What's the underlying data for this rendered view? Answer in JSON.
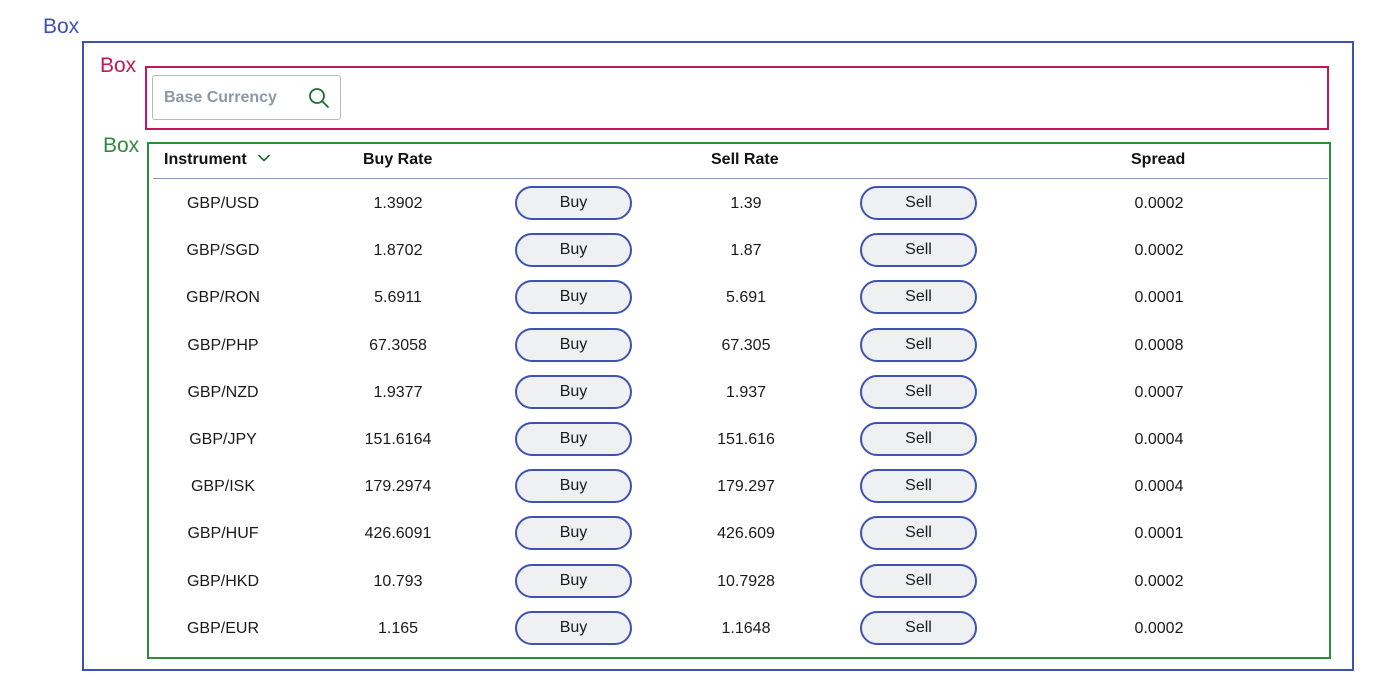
{
  "labels": {
    "outer": "Box",
    "search": "Box",
    "table": "Box"
  },
  "colors": {
    "outer_box": "#3f51b5",
    "search_box": "#c2185b",
    "table_box": "#2e8b3a",
    "search_icon": "#1b6b34",
    "button_border": "#3f51b5"
  },
  "search": {
    "placeholder": "Base Currency",
    "value": "",
    "icon": "search-icon"
  },
  "table": {
    "headers": {
      "instrument": "Instrument",
      "buy_rate": "Buy Rate",
      "sell_rate": "Sell Rate",
      "spread": "Spread",
      "sort_icon": "chevron-down-icon"
    },
    "buy_label": "Buy",
    "sell_label": "Sell",
    "rows": [
      {
        "instrument": "GBP/USD",
        "buy_rate": "1.3902",
        "sell_rate": "1.39",
        "spread": "0.0002"
      },
      {
        "instrument": "GBP/SGD",
        "buy_rate": "1.8702",
        "sell_rate": "1.87",
        "spread": "0.0002"
      },
      {
        "instrument": "GBP/RON",
        "buy_rate": "5.6911",
        "sell_rate": "5.691",
        "spread": "0.0001"
      },
      {
        "instrument": "GBP/PHP",
        "buy_rate": "67.3058",
        "sell_rate": "67.305",
        "spread": "0.0008"
      },
      {
        "instrument": "GBP/NZD",
        "buy_rate": "1.9377",
        "sell_rate": "1.937",
        "spread": "0.0007"
      },
      {
        "instrument": "GBP/JPY",
        "buy_rate": "151.6164",
        "sell_rate": "151.616",
        "spread": "0.0004"
      },
      {
        "instrument": "GBP/ISK",
        "buy_rate": "179.2974",
        "sell_rate": "179.297",
        "spread": "0.0004"
      },
      {
        "instrument": "GBP/HUF",
        "buy_rate": "426.6091",
        "sell_rate": "426.609",
        "spread": "0.0001"
      },
      {
        "instrument": "GBP/HKD",
        "buy_rate": "10.793",
        "sell_rate": "10.7928",
        "spread": "0.0002"
      },
      {
        "instrument": "GBP/EUR",
        "buy_rate": "1.165",
        "sell_rate": "1.1648",
        "spread": "0.0002"
      }
    ]
  }
}
